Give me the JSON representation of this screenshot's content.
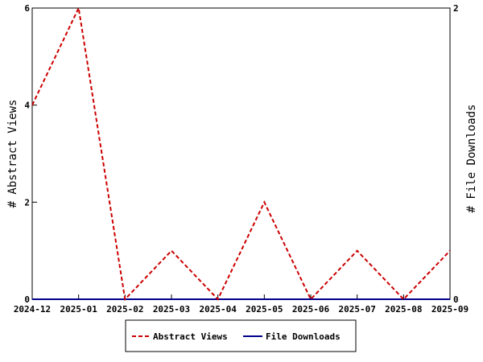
{
  "chart_data": {
    "type": "line",
    "title": "",
    "x": [
      "2024-12",
      "2025-01",
      "2025-02",
      "2025-03",
      "2025-04",
      "2025-05",
      "2025-06",
      "2025-07",
      "2025-08",
      "2025-09"
    ],
    "y_left_label": "# Abstract Views",
    "y_right_label": "# File Downloads",
    "y_left_lim": [
      0,
      6
    ],
    "y_right_lim": [
      0,
      2
    ],
    "y_left_ticks": [
      0,
      2,
      4,
      6
    ],
    "y_right_ticks": [
      0,
      2
    ],
    "grid": false,
    "legend_position": "bottom",
    "series": [
      {
        "name": "Abstract Views",
        "axis": "left",
        "color": "#cc0000",
        "dash": "dashed",
        "values": [
          4,
          6,
          0,
          1,
          0,
          2,
          0,
          1,
          0,
          1
        ]
      },
      {
        "name": "File Downloads",
        "axis": "right",
        "color": "#00008b",
        "dash": "solid",
        "values": [
          0,
          0,
          0,
          0,
          0,
          0,
          0,
          0,
          0,
          0
        ]
      }
    ]
  }
}
